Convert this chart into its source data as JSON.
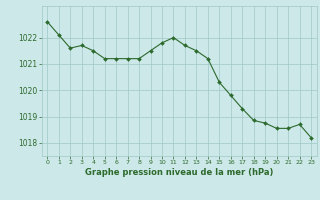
{
  "x": [
    0,
    1,
    2,
    3,
    4,
    5,
    6,
    7,
    8,
    9,
    10,
    11,
    12,
    13,
    14,
    15,
    16,
    17,
    18,
    19,
    20,
    21,
    22,
    23
  ],
  "y": [
    1022.6,
    1022.1,
    1021.6,
    1021.7,
    1021.5,
    1021.2,
    1021.2,
    1021.2,
    1021.2,
    1021.5,
    1021.8,
    1022.0,
    1021.7,
    1021.5,
    1021.2,
    1020.3,
    1019.8,
    1019.3,
    1018.85,
    1018.75,
    1018.55,
    1018.55,
    1018.7,
    1018.2
  ],
  "line_color": "#2d6a2d",
  "marker_color": "#2d6a2d",
  "bg_color": "#cce8e8",
  "grid_color": "#a0c8c8",
  "xlabel": "Graphe pression niveau de la mer (hPa)",
  "xlabel_color": "#2d6a2d",
  "tick_color": "#2d6a2d",
  "ylim": [
    1017.5,
    1023.2
  ],
  "yticks": [
    1018,
    1019,
    1020,
    1021,
    1022
  ],
  "xlim": [
    -0.5,
    23.5
  ],
  "xticks": [
    0,
    1,
    2,
    3,
    4,
    5,
    6,
    7,
    8,
    9,
    10,
    11,
    12,
    13,
    14,
    15,
    16,
    17,
    18,
    19,
    20,
    21,
    22,
    23
  ]
}
